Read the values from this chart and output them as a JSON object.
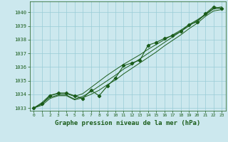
{
  "title": "Graphe pression niveau de la mer (hPa)",
  "background_color": "#cce8ee",
  "grid_color": "#99ccd6",
  "line_color": "#1a5c1a",
  "text_color": "#1a5c1a",
  "xlim": [
    -0.5,
    23.5
  ],
  "ylim": [
    1032.8,
    1040.8
  ],
  "xtick_labels": [
    "0",
    "1",
    "2",
    "3",
    "4",
    "5",
    "6",
    "7",
    "8",
    "9",
    "10",
    "11",
    "12",
    "13",
    "14",
    "15",
    "16",
    "17",
    "18",
    "19",
    "20",
    "21",
    "22",
    "23"
  ],
  "ytick_values": [
    1033,
    1034,
    1035,
    1036,
    1037,
    1038,
    1039,
    1040
  ],
  "series_main": [
    1033.0,
    1033.3,
    1033.9,
    1034.1,
    1034.1,
    1033.9,
    1033.7,
    1034.3,
    1033.9,
    1034.6,
    1035.2,
    1036.1,
    1036.3,
    1036.5,
    1037.6,
    1037.8,
    1038.1,
    1038.3,
    1038.6,
    1039.1,
    1039.3,
    1039.9,
    1040.4,
    1040.3
  ],
  "series2": [
    1033.0,
    1033.4,
    1033.95,
    1034.05,
    1034.05,
    1033.85,
    1034.05,
    1034.5,
    1034.95,
    1035.4,
    1035.8,
    1036.2,
    1036.55,
    1036.9,
    1037.3,
    1037.65,
    1038.0,
    1038.35,
    1038.7,
    1039.1,
    1039.45,
    1039.85,
    1040.3,
    1040.4
  ],
  "series3": [
    1033.0,
    1033.3,
    1033.8,
    1033.95,
    1033.95,
    1033.65,
    1033.85,
    1034.2,
    1034.6,
    1035.0,
    1035.4,
    1035.85,
    1036.2,
    1036.6,
    1037.0,
    1037.4,
    1037.8,
    1038.2,
    1038.6,
    1039.0,
    1039.4,
    1039.8,
    1040.25,
    1040.3
  ],
  "series4": [
    1033.0,
    1033.2,
    1033.7,
    1033.9,
    1033.9,
    1033.6,
    1033.75,
    1034.0,
    1034.3,
    1034.7,
    1035.05,
    1035.5,
    1035.9,
    1036.3,
    1036.7,
    1037.1,
    1037.55,
    1037.95,
    1038.35,
    1038.8,
    1039.2,
    1039.7,
    1040.1,
    1040.2
  ]
}
